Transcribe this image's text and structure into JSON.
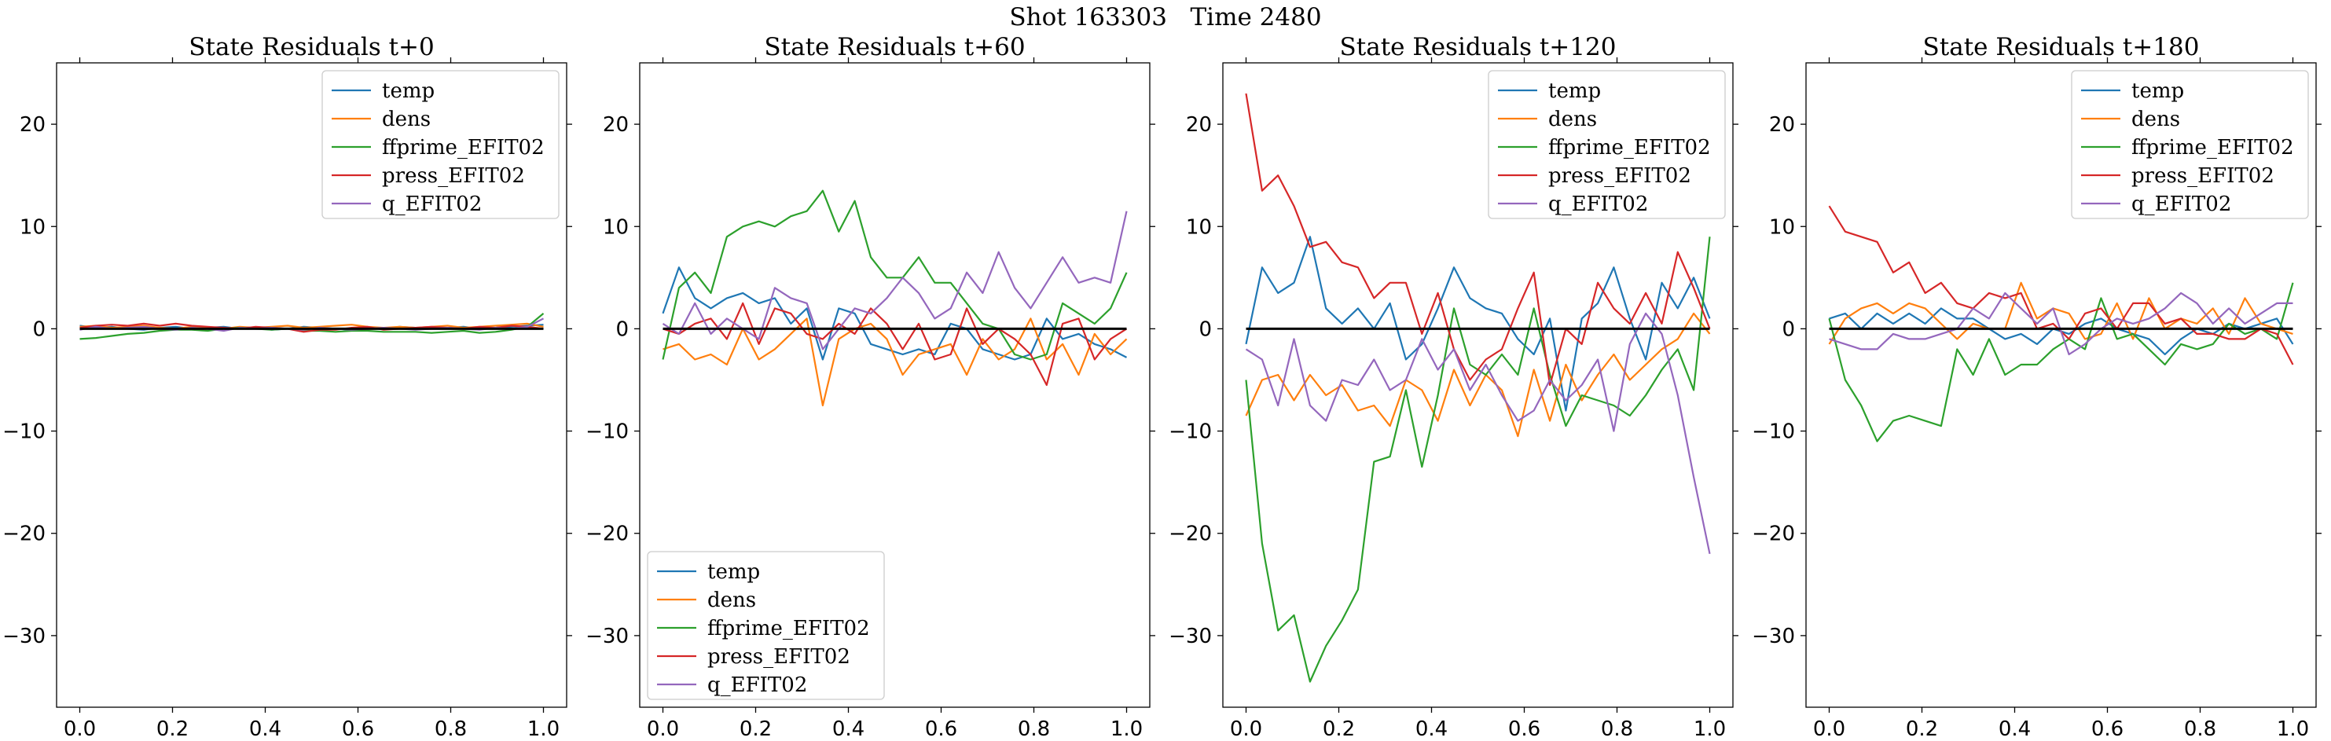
{
  "figure": {
    "suptitle": "Shot 163303   Time 2480"
  },
  "series_names": [
    "temp",
    "dens",
    "ffprime_EFIT02",
    "press_EFIT02",
    "q_EFIT02"
  ],
  "series_colors": [
    "#1f77b4",
    "#ff7f0e",
    "#2ca02c",
    "#d62728",
    "#9467bd"
  ],
  "chart_data": [
    {
      "type": "line",
      "title": "State Residuals t+0",
      "xlim": [
        -0.05,
        1.05
      ],
      "ylim": [
        -37,
        26
      ],
      "xticks": [
        "0.0",
        "0.2",
        "0.4",
        "0.6",
        "0.8",
        "1.0"
      ],
      "yticks": [
        "20",
        "10",
        "0",
        "−10",
        "−20",
        "−30"
      ],
      "grid": false,
      "zero_line": true,
      "legend": {
        "placement": "upper-right"
      },
      "x": [
        0,
        0.0345,
        0.069,
        0.1034,
        0.1379,
        0.1724,
        0.2069,
        0.2414,
        0.2759,
        0.3103,
        0.3448,
        0.3793,
        0.4138,
        0.4483,
        0.4828,
        0.5172,
        0.5517,
        0.5862,
        0.6207,
        0.6552,
        0.6897,
        0.7241,
        0.7586,
        0.7931,
        0.8276,
        0.8621,
        0.8966,
        0.931,
        0.9655,
        1.0
      ],
      "series": [
        {
          "name": "temp",
          "values": [
            0.3,
            0.1,
            0.2,
            0.0,
            -0.1,
            0.1,
            0.2,
            0.0,
            0.1,
            0.2,
            0.0,
            0.1,
            -0.1,
            0.0,
            0.2,
            0.1,
            0.0,
            -0.1,
            0.1,
            0.0,
            0.2,
            0.1,
            0.0,
            0.1,
            0.2,
            0.0,
            0.1,
            0.2,
            0.3,
            0.4
          ]
        },
        {
          "name": "dens",
          "values": [
            0.2,
            0.3,
            0.1,
            0.2,
            0.3,
            0.1,
            0.0,
            0.2,
            0.1,
            0.0,
            0.2,
            0.1,
            0.2,
            0.3,
            0.1,
            0.2,
            0.3,
            0.4,
            0.2,
            0.1,
            0.2,
            0.1,
            0.2,
            0.3,
            0.1,
            0.2,
            0.3,
            0.4,
            0.5,
            0.2
          ]
        },
        {
          "name": "ffprime_EFIT02",
          "values": [
            -1.0,
            -0.9,
            -0.7,
            -0.5,
            -0.4,
            -0.2,
            -0.1,
            -0.1,
            -0.2,
            0.0,
            0.1,
            0.0,
            -0.1,
            0.0,
            -0.2,
            -0.2,
            -0.3,
            -0.2,
            -0.2,
            -0.3,
            -0.3,
            -0.3,
            -0.4,
            -0.3,
            -0.2,
            -0.4,
            -0.3,
            -0.1,
            0.2,
            1.5
          ]
        },
        {
          "name": "press_EFIT02",
          "values": [
            0.1,
            0.3,
            0.4,
            0.3,
            0.5,
            0.3,
            0.5,
            0.3,
            0.2,
            0.1,
            0.0,
            0.2,
            0.1,
            0.0,
            -0.3,
            -0.1,
            -0.1,
            0.1,
            0.2,
            -0.1,
            0.0,
            0.1,
            0.2,
            0.1,
            0.0,
            0.2,
            0.1,
            0.3,
            0.2,
            0.0
          ]
        },
        {
          "name": "q_EFIT02",
          "values": [
            -0.1,
            0.2,
            0.0,
            0.1,
            0.2,
            0.0,
            -0.1,
            0.1,
            0.0,
            -0.2,
            0.1,
            0.0,
            0.1,
            0.0,
            -0.1,
            0.1,
            0.0,
            -0.1,
            0.0,
            0.1,
            0.0,
            -0.1,
            0.0,
            0.1,
            0.0,
            -0.1,
            0.1,
            0.0,
            0.2,
            1.0
          ]
        }
      ]
    },
    {
      "type": "line",
      "title": "State Residuals t+60",
      "xlim": [
        -0.05,
        1.05
      ],
      "ylim": [
        -37,
        26
      ],
      "xticks": [
        "0.0",
        "0.2",
        "0.4",
        "0.6",
        "0.8",
        "1.0"
      ],
      "yticks": [
        "20",
        "10",
        "0",
        "−10",
        "−20",
        "−30"
      ],
      "grid": false,
      "zero_line": true,
      "legend": {
        "placement": "lower-left"
      },
      "x": [
        0,
        0.0345,
        0.069,
        0.1034,
        0.1379,
        0.1724,
        0.2069,
        0.2414,
        0.2759,
        0.3103,
        0.3448,
        0.3793,
        0.4138,
        0.4483,
        0.4828,
        0.5172,
        0.5517,
        0.5862,
        0.6207,
        0.6552,
        0.6897,
        0.7241,
        0.7586,
        0.7931,
        0.8276,
        0.8621,
        0.8966,
        0.931,
        0.9655,
        1.0
      ],
      "series": [
        {
          "name": "temp",
          "values": [
            1.5,
            6.0,
            3.0,
            2.0,
            3.0,
            3.5,
            2.5,
            3.0,
            0.5,
            2.0,
            -3.0,
            2.0,
            1.5,
            -1.5,
            -2.0,
            -2.5,
            -2.0,
            -2.5,
            0.5,
            0.0,
            -2.0,
            -2.5,
            -3.0,
            -2.5,
            1.0,
            -1.0,
            -0.5,
            -1.5,
            -2.0,
            -2.8
          ]
        },
        {
          "name": "dens",
          "values": [
            -2.0,
            -1.5,
            -3.0,
            -2.5,
            -3.5,
            0.0,
            -3.0,
            -2.0,
            -0.5,
            1.0,
            -7.5,
            -1.0,
            0.0,
            0.5,
            -1.0,
            -4.5,
            -2.5,
            -2.0,
            -1.5,
            -4.5,
            -1.0,
            -3.0,
            -2.0,
            1.0,
            -3.0,
            -1.5,
            -4.5,
            -0.5,
            -2.5,
            -1.0
          ]
        },
        {
          "name": "ffprime_EFIT02",
          "values": [
            -3.0,
            4.0,
            5.5,
            3.5,
            9.0,
            10.0,
            10.5,
            10.0,
            11.0,
            11.5,
            13.5,
            9.5,
            12.5,
            7.0,
            5.0,
            5.0,
            7.0,
            4.5,
            4.5,
            2.5,
            0.5,
            0.0,
            -2.5,
            -3.0,
            -2.5,
            2.5,
            1.5,
            0.5,
            2.0,
            5.5
          ]
        },
        {
          "name": "press_EFIT02",
          "values": [
            0.0,
            -0.5,
            0.5,
            1.0,
            -1.0,
            2.5,
            -1.5,
            2.0,
            1.5,
            -0.5,
            -1.0,
            0.5,
            -0.5,
            2.0,
            0.5,
            -2.0,
            0.5,
            -3.0,
            -2.5,
            2.0,
            -1.5,
            0.0,
            -1.0,
            -2.5,
            -5.5,
            0.5,
            1.0,
            -3.0,
            -1.0,
            0.0
          ]
        },
        {
          "name": "q_EFIT02",
          "values": [
            0.5,
            -0.5,
            2.5,
            -0.5,
            1.0,
            0.0,
            -1.0,
            4.0,
            3.0,
            2.5,
            -2.0,
            0.0,
            2.0,
            1.5,
            3.0,
            5.0,
            3.5,
            1.0,
            2.0,
            5.5,
            3.5,
            7.5,
            4.0,
            2.0,
            4.5,
            7.0,
            4.5,
            5.0,
            4.5,
            11.5
          ]
        }
      ]
    },
    {
      "type": "line",
      "title": "State Residuals t+120",
      "xlim": [
        -0.05,
        1.05
      ],
      "ylim": [
        -37,
        26
      ],
      "xticks": [
        "0.0",
        "0.2",
        "0.4",
        "0.6",
        "0.8",
        "1.0"
      ],
      "yticks": [
        "20",
        "10",
        "0",
        "−10",
        "−20",
        "−30"
      ],
      "grid": false,
      "zero_line": true,
      "legend": {
        "placement": "upper-right"
      },
      "x": [
        0,
        0.0345,
        0.069,
        0.1034,
        0.1379,
        0.1724,
        0.2069,
        0.2414,
        0.2759,
        0.3103,
        0.3448,
        0.3793,
        0.4138,
        0.4483,
        0.4828,
        0.5172,
        0.5517,
        0.5862,
        0.6207,
        0.6552,
        0.6897,
        0.7241,
        0.7586,
        0.7931,
        0.8276,
        0.8621,
        0.8966,
        0.931,
        0.9655,
        1.0
      ],
      "series": [
        {
          "name": "temp",
          "values": [
            -1.5,
            6.0,
            3.5,
            4.5,
            9.0,
            2.0,
            0.5,
            2.0,
            0.0,
            2.5,
            -3.0,
            -1.5,
            2.0,
            6.0,
            3.0,
            2.0,
            1.5,
            -1.0,
            -2.5,
            1.0,
            -8.0,
            1.0,
            2.5,
            6.0,
            1.0,
            -3.0,
            4.5,
            2.0,
            5.0,
            1.0
          ]
        },
        {
          "name": "dens",
          "values": [
            -8.5,
            -5.0,
            -4.5,
            -7.0,
            -4.5,
            -6.5,
            -5.5,
            -8.0,
            -7.5,
            -9.5,
            -5.0,
            -6.0,
            -9.0,
            -4.0,
            -7.5,
            -4.5,
            -6.0,
            -10.5,
            -4.0,
            -9.0,
            -3.5,
            -7.0,
            -4.5,
            -2.5,
            -5.0,
            -3.5,
            -2.0,
            -1.0,
            1.5,
            -0.5
          ]
        },
        {
          "name": "ffprime_EFIT02",
          "values": [
            -5.0,
            -21.0,
            -29.5,
            -28.0,
            -34.5,
            -31.0,
            -28.5,
            -25.5,
            -13.0,
            -12.5,
            -6.0,
            -13.5,
            -6.5,
            2.0,
            -3.5,
            -4.5,
            -2.5,
            -4.5,
            2.0,
            -4.5,
            -9.5,
            -6.5,
            -7.0,
            -7.5,
            -8.5,
            -6.5,
            -4.0,
            -2.0,
            -6.0,
            9.0
          ]
        },
        {
          "name": "press_EFIT02",
          "values": [
            23.0,
            13.5,
            15.0,
            12.0,
            8.0,
            8.5,
            6.5,
            6.0,
            3.0,
            4.5,
            4.5,
            -0.5,
            3.5,
            -2.0,
            -5.0,
            -3.0,
            -2.0,
            2.0,
            5.5,
            -5.5,
            0.0,
            -1.5,
            4.5,
            2.0,
            0.5,
            3.5,
            0.5,
            7.5,
            4.0,
            0.0
          ]
        },
        {
          "name": "q_EFIT02",
          "values": [
            -2.0,
            -3.0,
            -7.5,
            -1.0,
            -7.5,
            -9.0,
            -5.0,
            -5.5,
            -3.0,
            -6.0,
            -5.0,
            -1.0,
            -4.0,
            -2.0,
            -6.0,
            -3.5,
            -6.5,
            -9.0,
            -8.0,
            -5.0,
            -7.0,
            -5.5,
            -3.0,
            -10.0,
            -1.5,
            1.5,
            -0.5,
            -6.5,
            -14.5,
            -22.0
          ]
        }
      ]
    },
    {
      "type": "line",
      "title": "State Residuals t+180",
      "xlim": [
        -0.05,
        1.05
      ],
      "ylim": [
        -37,
        26
      ],
      "xticks": [
        "0.0",
        "0.2",
        "0.4",
        "0.6",
        "0.8",
        "1.0"
      ],
      "yticks": [
        "20",
        "10",
        "0",
        "−10",
        "−20",
        "−30"
      ],
      "grid": false,
      "zero_line": true,
      "legend": {
        "placement": "upper-right"
      },
      "x": [
        0,
        0.0345,
        0.069,
        0.1034,
        0.1379,
        0.1724,
        0.2069,
        0.2414,
        0.2759,
        0.3103,
        0.3448,
        0.3793,
        0.4138,
        0.4483,
        0.4828,
        0.5172,
        0.5517,
        0.5862,
        0.6207,
        0.6552,
        0.6897,
        0.7241,
        0.7586,
        0.7931,
        0.8276,
        0.8621,
        0.8966,
        0.931,
        0.9655,
        1.0
      ],
      "series": [
        {
          "name": "temp",
          "values": [
            1.0,
            1.5,
            0.0,
            1.5,
            0.5,
            1.5,
            0.5,
            2.0,
            1.0,
            1.0,
            0.0,
            -1.0,
            -0.5,
            -1.5,
            0.0,
            -0.5,
            0.5,
            1.0,
            0.0,
            -0.5,
            -1.0,
            -2.5,
            -1.0,
            0.0,
            -0.5,
            0.5,
            0.0,
            0.5,
            1.0,
            -1.5
          ]
        },
        {
          "name": "dens",
          "values": [
            -1.5,
            1.0,
            2.0,
            2.5,
            1.5,
            2.5,
            2.0,
            0.5,
            -1.0,
            0.5,
            0.0,
            0.0,
            4.5,
            1.0,
            2.0,
            1.5,
            -1.0,
            -0.5,
            2.5,
            -1.0,
            3.0,
            0.0,
            1.0,
            0.5,
            2.0,
            -0.5,
            3.0,
            0.5,
            0.0,
            -0.5
          ]
        },
        {
          "name": "ffprime_EFIT02",
          "values": [
            1.0,
            -5.0,
            -7.5,
            -11.0,
            -9.0,
            -8.5,
            -9.0,
            -9.5,
            -2.0,
            -4.5,
            -1.0,
            -4.5,
            -3.5,
            -3.5,
            -2.0,
            -1.0,
            -2.0,
            3.0,
            -1.0,
            -0.5,
            -2.0,
            -3.5,
            -1.5,
            -2.0,
            -1.5,
            0.5,
            -0.5,
            0.0,
            -1.0,
            4.5
          ]
        },
        {
          "name": "press_EFIT02",
          "values": [
            12.0,
            9.5,
            9.0,
            8.5,
            5.5,
            6.5,
            3.5,
            4.5,
            2.5,
            2.0,
            3.5,
            3.0,
            3.5,
            0.0,
            0.5,
            -1.0,
            1.5,
            2.0,
            0.0,
            2.5,
            2.5,
            0.5,
            1.0,
            -0.5,
            -0.5,
            -1.0,
            -1.0,
            0.0,
            -0.5,
            -3.5
          ]
        },
        {
          "name": "q_EFIT02",
          "values": [
            -1.0,
            -1.5,
            -2.0,
            -2.0,
            -0.5,
            -1.0,
            -1.0,
            -0.5,
            0.0,
            2.0,
            1.0,
            3.5,
            2.0,
            0.5,
            2.0,
            -2.5,
            -1.5,
            0.0,
            1.0,
            0.5,
            1.0,
            2.0,
            3.5,
            2.5,
            0.5,
            2.0,
            0.5,
            1.5,
            2.5,
            2.5
          ]
        }
      ]
    }
  ]
}
